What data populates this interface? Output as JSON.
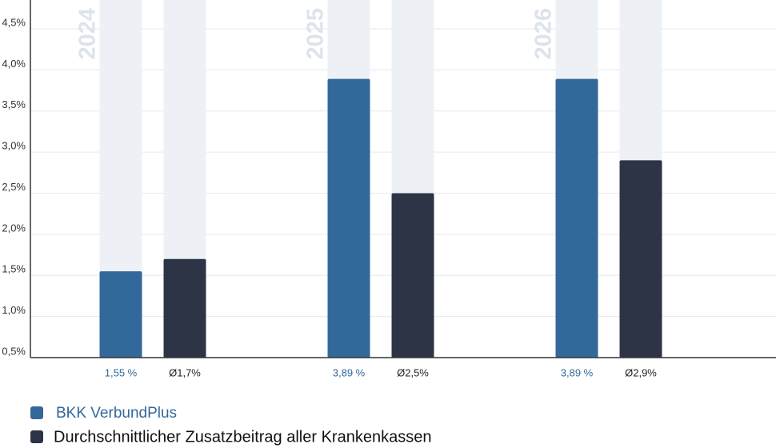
{
  "chart_data": {
    "type": "bar",
    "categories": [
      "2024",
      "2025",
      "2026"
    ],
    "series": [
      {
        "name": "BKK VerbundPlus",
        "color": "#33689b",
        "values": [
          1.55,
          3.89,
          3.89
        ],
        "value_labels": [
          "1,55 %",
          "3,89 %",
          "3,89 %"
        ]
      },
      {
        "name": "Durchschnittlicher Zusatzbeitrag aller Krankenkassen",
        "color": "#2c3446",
        "values": [
          1.7,
          2.5,
          2.9
        ],
        "value_labels": [
          "Ø1,7%",
          "Ø2,5%",
          "Ø2,9%"
        ]
      }
    ],
    "ylim": [
      0.5,
      4.85
    ],
    "yticks": [
      {
        "value": 0.5,
        "label": "0,5%"
      },
      {
        "value": 1.0,
        "label": "1,0%"
      },
      {
        "value": 1.5,
        "label": "1,5%"
      },
      {
        "value": 2.0,
        "label": "2,0%"
      },
      {
        "value": 2.5,
        "label": "2,5%"
      },
      {
        "value": 3.0,
        "label": "3,0%"
      },
      {
        "value": 3.5,
        "label": "3,5%"
      },
      {
        "value": 4.0,
        "label": "4,0%"
      },
      {
        "value": 4.5,
        "label": "4,5%"
      }
    ],
    "grid": true
  }
}
